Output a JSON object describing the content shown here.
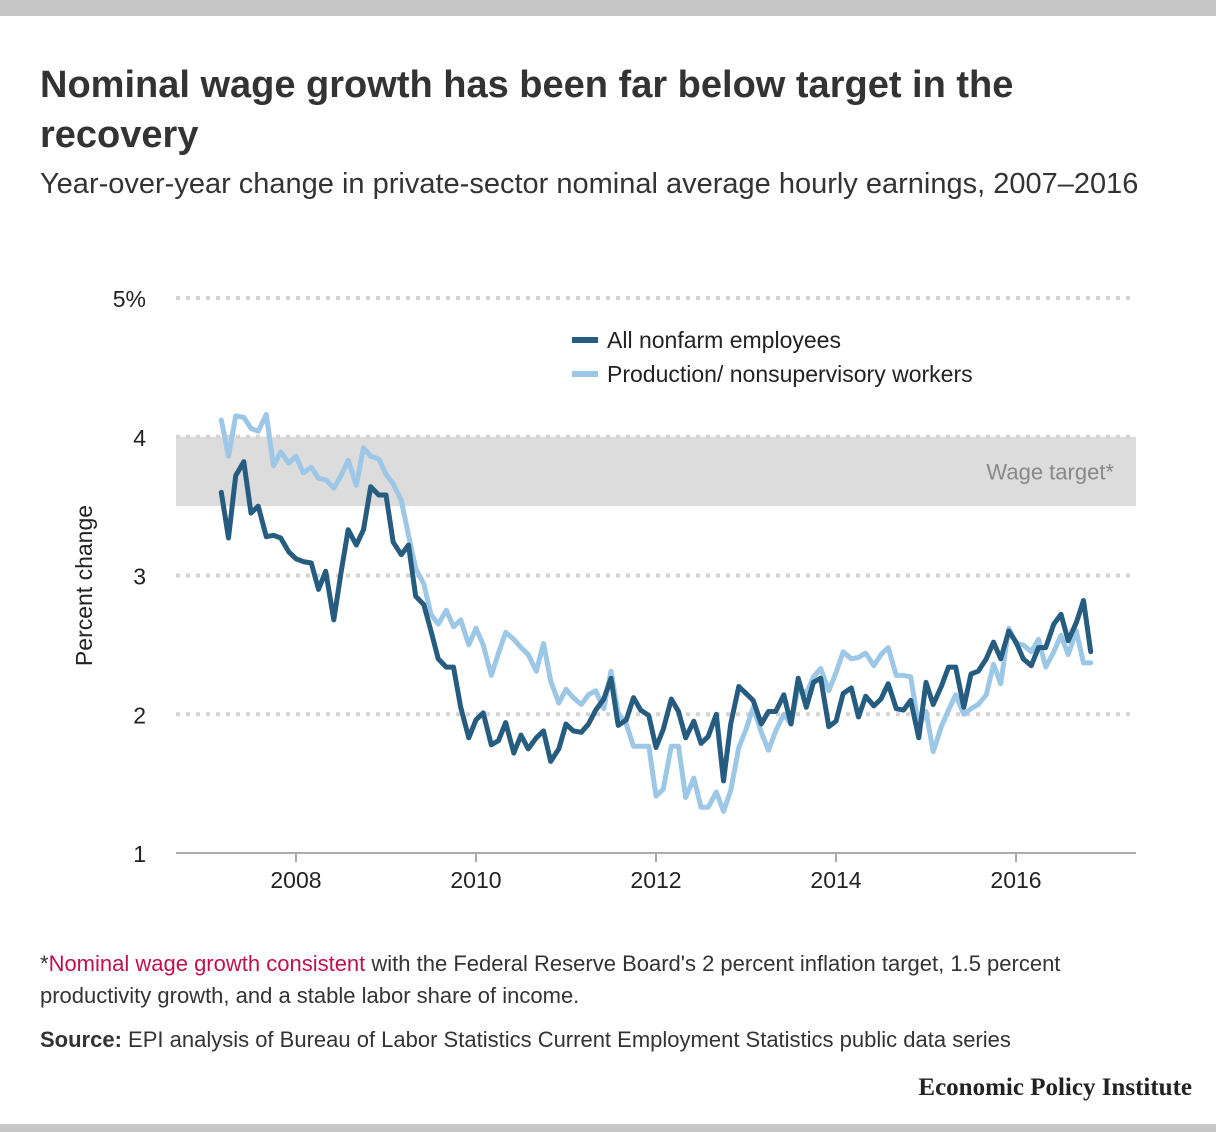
{
  "title": "Nominal wage growth has been far below target in the recovery",
  "subtitle": "Year-over-year change in private-sector nominal average hourly earnings, 2007–2016",
  "chart_data": {
    "type": "line",
    "xlim": [
      2006.667,
      2017.333
    ],
    "ylim": [
      1,
      5
    ],
    "yticks": [
      1,
      2,
      3,
      4,
      5
    ],
    "ytick_labels": [
      "1",
      "2",
      "3",
      "4",
      "5%"
    ],
    "xticks": [
      2008,
      2010,
      2012,
      2014,
      2016
    ],
    "xtick_labels": [
      "2008",
      "2010",
      "2012",
      "2014",
      "2016"
    ],
    "ylabel": "Percent change",
    "xlabel": "",
    "grid": true,
    "legend_position": "top-center",
    "band": {
      "from": 3.5,
      "to": 4.0,
      "label": "Wage target*",
      "color": "#dcdcdc"
    },
    "series": [
      {
        "name": "All nonfarm employees",
        "color": "#255c80",
        "points": [
          [
            2007.17,
            3.6
          ],
          [
            2007.25,
            3.27
          ],
          [
            2007.33,
            3.72
          ],
          [
            2007.42,
            3.82
          ],
          [
            2007.5,
            3.45
          ],
          [
            2007.58,
            3.5
          ],
          [
            2007.67,
            3.28
          ],
          [
            2007.75,
            3.29
          ],
          [
            2007.83,
            3.27
          ],
          [
            2007.92,
            3.17
          ],
          [
            2008.0,
            3.12
          ],
          [
            2008.08,
            3.1
          ],
          [
            2008.17,
            3.09
          ],
          [
            2008.25,
            2.9
          ],
          [
            2008.33,
            3.03
          ],
          [
            2008.42,
            2.68
          ],
          [
            2008.5,
            3.02
          ],
          [
            2008.58,
            3.33
          ],
          [
            2008.67,
            3.22
          ],
          [
            2008.75,
            3.33
          ],
          [
            2008.83,
            3.64
          ],
          [
            2008.92,
            3.58
          ],
          [
            2009.0,
            3.58
          ],
          [
            2009.08,
            3.24
          ],
          [
            2009.17,
            3.15
          ],
          [
            2009.25,
            3.22
          ],
          [
            2009.33,
            2.85
          ],
          [
            2009.42,
            2.79
          ],
          [
            2009.5,
            2.6
          ],
          [
            2009.58,
            2.4
          ],
          [
            2009.67,
            2.34
          ],
          [
            2009.75,
            2.34
          ],
          [
            2009.83,
            2.05
          ],
          [
            2009.92,
            1.83
          ],
          [
            2010.0,
            1.96
          ],
          [
            2010.08,
            2.01
          ],
          [
            2010.17,
            1.78
          ],
          [
            2010.25,
            1.81
          ],
          [
            2010.33,
            1.94
          ],
          [
            2010.42,
            1.72
          ],
          [
            2010.5,
            1.85
          ],
          [
            2010.58,
            1.75
          ],
          [
            2010.67,
            1.83
          ],
          [
            2010.75,
            1.88
          ],
          [
            2010.83,
            1.66
          ],
          [
            2010.92,
            1.75
          ],
          [
            2011.0,
            1.93
          ],
          [
            2011.08,
            1.88
          ],
          [
            2011.17,
            1.87
          ],
          [
            2011.25,
            1.93
          ],
          [
            2011.33,
            2.03
          ],
          [
            2011.42,
            2.11
          ],
          [
            2011.5,
            2.26
          ],
          [
            2011.58,
            1.92
          ],
          [
            2011.67,
            1.96
          ],
          [
            2011.75,
            2.12
          ],
          [
            2011.83,
            2.03
          ],
          [
            2011.92,
            1.99
          ],
          [
            2012.0,
            1.76
          ],
          [
            2012.08,
            1.89
          ],
          [
            2012.17,
            2.11
          ],
          [
            2012.25,
            2.02
          ],
          [
            2012.33,
            1.83
          ],
          [
            2012.42,
            1.95
          ],
          [
            2012.5,
            1.79
          ],
          [
            2012.58,
            1.84
          ],
          [
            2012.67,
            2.0
          ],
          [
            2012.75,
            1.52
          ],
          [
            2012.83,
            1.93
          ],
          [
            2012.92,
            2.2
          ],
          [
            2013.0,
            2.15
          ],
          [
            2013.08,
            2.1
          ],
          [
            2013.17,
            1.93
          ],
          [
            2013.25,
            2.02
          ],
          [
            2013.33,
            2.02
          ],
          [
            2013.42,
            2.14
          ],
          [
            2013.5,
            1.93
          ],
          [
            2013.58,
            2.26
          ],
          [
            2013.67,
            2.05
          ],
          [
            2013.75,
            2.23
          ],
          [
            2013.83,
            2.26
          ],
          [
            2013.92,
            1.91
          ],
          [
            2014.0,
            1.95
          ],
          [
            2014.08,
            2.15
          ],
          [
            2014.17,
            2.19
          ],
          [
            2014.25,
            1.98
          ],
          [
            2014.33,
            2.13
          ],
          [
            2014.42,
            2.06
          ],
          [
            2014.5,
            2.11
          ],
          [
            2014.58,
            2.22
          ],
          [
            2014.67,
            2.04
          ],
          [
            2014.75,
            2.03
          ],
          [
            2014.83,
            2.1
          ],
          [
            2014.92,
            1.83
          ],
          [
            2015.0,
            2.23
          ],
          [
            2015.08,
            2.07
          ],
          [
            2015.17,
            2.2
          ],
          [
            2015.25,
            2.34
          ],
          [
            2015.33,
            2.34
          ],
          [
            2015.42,
            2.05
          ],
          [
            2015.5,
            2.29
          ],
          [
            2015.58,
            2.31
          ],
          [
            2015.67,
            2.4
          ],
          [
            2015.75,
            2.52
          ],
          [
            2015.83,
            2.4
          ],
          [
            2015.92,
            2.6
          ],
          [
            2016.0,
            2.52
          ],
          [
            2016.08,
            2.4
          ],
          [
            2016.17,
            2.35
          ],
          [
            2016.25,
            2.48
          ],
          [
            2016.33,
            2.48
          ],
          [
            2016.42,
            2.65
          ],
          [
            2016.5,
            2.72
          ],
          [
            2016.58,
            2.53
          ],
          [
            2016.67,
            2.66
          ],
          [
            2016.75,
            2.82
          ],
          [
            2016.83,
            2.45
          ]
        ]
      },
      {
        "name": "Production/ nonsupervisory workers",
        "color": "#9cc7e6",
        "points": [
          [
            2007.17,
            4.12
          ],
          [
            2007.25,
            3.86
          ],
          [
            2007.33,
            4.15
          ],
          [
            2007.42,
            4.14
          ],
          [
            2007.5,
            4.06
          ],
          [
            2007.58,
            4.04
          ],
          [
            2007.67,
            4.16
          ],
          [
            2007.75,
            3.79
          ],
          [
            2007.83,
            3.89
          ],
          [
            2007.92,
            3.81
          ],
          [
            2008.0,
            3.86
          ],
          [
            2008.08,
            3.74
          ],
          [
            2008.17,
            3.78
          ],
          [
            2008.25,
            3.7
          ],
          [
            2008.33,
            3.69
          ],
          [
            2008.42,
            3.63
          ],
          [
            2008.5,
            3.72
          ],
          [
            2008.58,
            3.83
          ],
          [
            2008.67,
            3.65
          ],
          [
            2008.75,
            3.92
          ],
          [
            2008.83,
            3.86
          ],
          [
            2008.92,
            3.84
          ],
          [
            2009.0,
            3.73
          ],
          [
            2009.08,
            3.66
          ],
          [
            2009.17,
            3.54
          ],
          [
            2009.25,
            3.29
          ],
          [
            2009.33,
            3.05
          ],
          [
            2009.42,
            2.94
          ],
          [
            2009.5,
            2.72
          ],
          [
            2009.58,
            2.65
          ],
          [
            2009.67,
            2.75
          ],
          [
            2009.75,
            2.63
          ],
          [
            2009.83,
            2.68
          ],
          [
            2009.92,
            2.5
          ],
          [
            2010.0,
            2.62
          ],
          [
            2010.08,
            2.5
          ],
          [
            2010.17,
            2.28
          ],
          [
            2010.25,
            2.44
          ],
          [
            2010.33,
            2.59
          ],
          [
            2010.42,
            2.54
          ],
          [
            2010.5,
            2.48
          ],
          [
            2010.58,
            2.43
          ],
          [
            2010.67,
            2.31
          ],
          [
            2010.75,
            2.51
          ],
          [
            2010.83,
            2.24
          ],
          [
            2010.92,
            2.08
          ],
          [
            2011.0,
            2.18
          ],
          [
            2011.08,
            2.12
          ],
          [
            2011.17,
            2.07
          ],
          [
            2011.25,
            2.14
          ],
          [
            2011.33,
            2.17
          ],
          [
            2011.42,
            2.04
          ],
          [
            2011.5,
            2.31
          ],
          [
            2011.58,
            2.01
          ],
          [
            2011.67,
            1.93
          ],
          [
            2011.75,
            1.77
          ],
          [
            2011.83,
            1.77
          ],
          [
            2011.92,
            1.77
          ],
          [
            2012.0,
            1.41
          ],
          [
            2012.08,
            1.46
          ],
          [
            2012.17,
            1.77
          ],
          [
            2012.25,
            1.77
          ],
          [
            2012.33,
            1.4
          ],
          [
            2012.42,
            1.54
          ],
          [
            2012.5,
            1.33
          ],
          [
            2012.58,
            1.33
          ],
          [
            2012.67,
            1.44
          ],
          [
            2012.75,
            1.3
          ],
          [
            2012.83,
            1.45
          ],
          [
            2012.92,
            1.76
          ],
          [
            2013.0,
            1.89
          ],
          [
            2013.08,
            2.05
          ],
          [
            2013.17,
            1.87
          ],
          [
            2013.25,
            1.74
          ],
          [
            2013.33,
            1.88
          ],
          [
            2013.42,
            2.0
          ],
          [
            2013.5,
            1.93
          ],
          [
            2013.58,
            2.19
          ],
          [
            2013.67,
            2.15
          ],
          [
            2013.75,
            2.27
          ],
          [
            2013.83,
            2.33
          ],
          [
            2013.92,
            2.17
          ],
          [
            2014.0,
            2.3
          ],
          [
            2014.08,
            2.45
          ],
          [
            2014.17,
            2.4
          ],
          [
            2014.25,
            2.41
          ],
          [
            2014.33,
            2.44
          ],
          [
            2014.42,
            2.35
          ],
          [
            2014.5,
            2.43
          ],
          [
            2014.58,
            2.48
          ],
          [
            2014.67,
            2.28
          ],
          [
            2014.75,
            2.28
          ],
          [
            2014.83,
            2.27
          ],
          [
            2014.92,
            1.91
          ],
          [
            2015.0,
            2.02
          ],
          [
            2015.08,
            1.73
          ],
          [
            2015.17,
            1.91
          ],
          [
            2015.25,
            2.03
          ],
          [
            2015.33,
            2.14
          ],
          [
            2015.42,
            2.0
          ],
          [
            2015.5,
            2.04
          ],
          [
            2015.58,
            2.07
          ],
          [
            2015.67,
            2.14
          ],
          [
            2015.75,
            2.36
          ],
          [
            2015.83,
            2.22
          ],
          [
            2015.92,
            2.62
          ],
          [
            2016.0,
            2.51
          ],
          [
            2016.08,
            2.5
          ],
          [
            2016.17,
            2.45
          ],
          [
            2016.25,
            2.54
          ],
          [
            2016.33,
            2.34
          ],
          [
            2016.42,
            2.45
          ],
          [
            2016.5,
            2.57
          ],
          [
            2016.58,
            2.43
          ],
          [
            2016.67,
            2.6
          ],
          [
            2016.75,
            2.37
          ],
          [
            2016.83,
            2.37
          ]
        ]
      }
    ]
  },
  "note": {
    "asterisk": "*",
    "link_text": "Nominal wage growth consistent",
    "rest": " with the Federal Reserve Board's 2 percent inflation target, 1.5 percent productivity growth, and a stable labor share of income."
  },
  "source": {
    "label": "Source:",
    "text": " EPI analysis of Bureau of Labor Statistics Current Employment Statistics public data series"
  },
  "brand": "Economic Policy Institute"
}
